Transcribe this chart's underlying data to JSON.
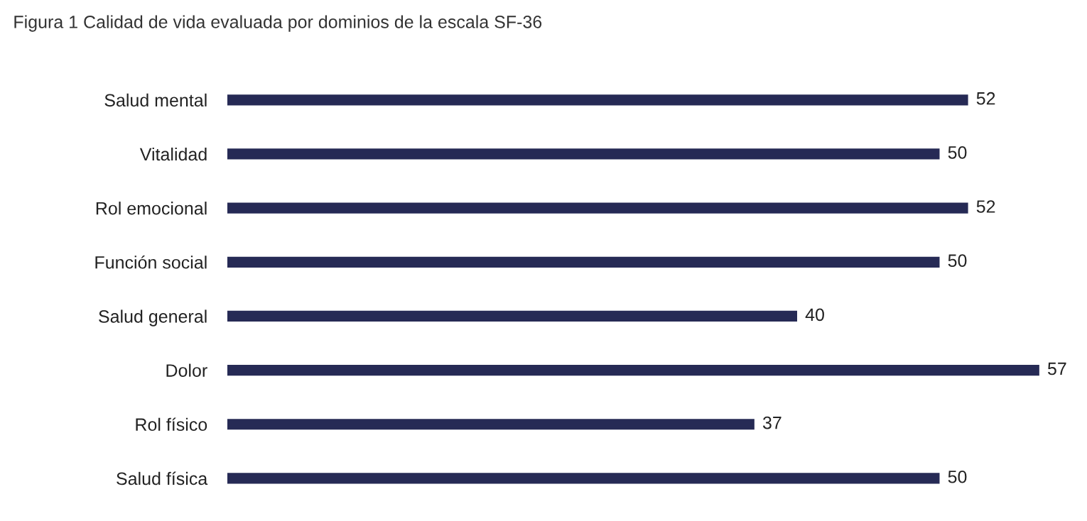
{
  "chart_data": {
    "type": "bar",
    "orientation": "horizontal",
    "title": "Figura 1 Calidad de vida evaluada por dominios de la escala SF-36",
    "categories": [
      "Salud mental",
      "Vitalidad",
      "Rol emocional",
      "Función social",
      "Salud general",
      "Dolor",
      "Rol físico",
      "Salud física"
    ],
    "values": [
      52,
      50,
      52,
      50,
      40,
      57,
      37,
      50
    ],
    "color": "#262a55",
    "data_labels": true,
    "tick_labels": "y",
    "grid": false,
    "legend": false
  }
}
